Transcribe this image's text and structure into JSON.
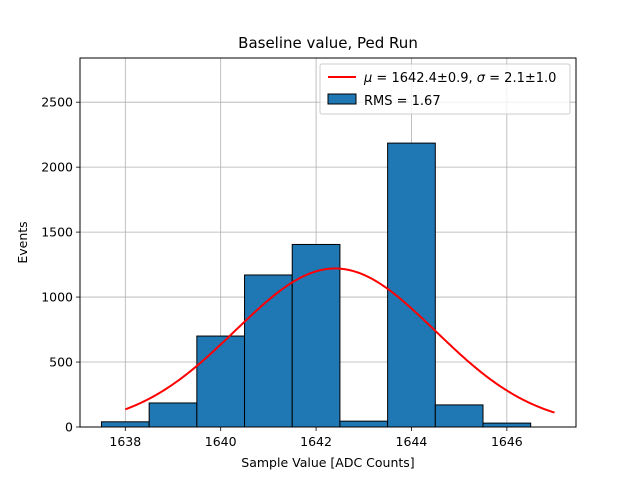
{
  "chart_data": {
    "type": "bar",
    "title": "Baseline value, Ped Run",
    "xlabel": "Sample Value [ADC Counts]",
    "ylabel": "Events",
    "xlim": [
      1637.05,
      1647.45
    ],
    "ylim": [
      0,
      2840
    ],
    "xticks": [
      1638,
      1640,
      1642,
      1644,
      1646
    ],
    "yticks": [
      0,
      500,
      1000,
      1500,
      2000,
      2500
    ],
    "grid": true,
    "histogram": {
      "name": "RMS = 1.67",
      "color": "#1f77b4",
      "bin_edges": [
        1637.5,
        1638.5,
        1639.5,
        1640.5,
        1641.5,
        1642.5,
        1643.5,
        1644.5,
        1645.5,
        1646.5
      ],
      "values": [
        40,
        185,
        700,
        1170,
        1405,
        45,
        2185,
        170,
        30
      ]
    },
    "fit": {
      "name": "μ = 1642.4±0.9, σ = 2.1±1.0",
      "label_parts": [
        "μ",
        " = 1642.4±0.9, ",
        "σ",
        " = 2.1±1.0"
      ],
      "type": "gaussian",
      "color": "#ff0000",
      "amplitude": 1220,
      "mean": 1642.4,
      "sigma": 2.1,
      "x_range": [
        1638,
        1647
      ]
    },
    "legend_location": "upper right"
  }
}
